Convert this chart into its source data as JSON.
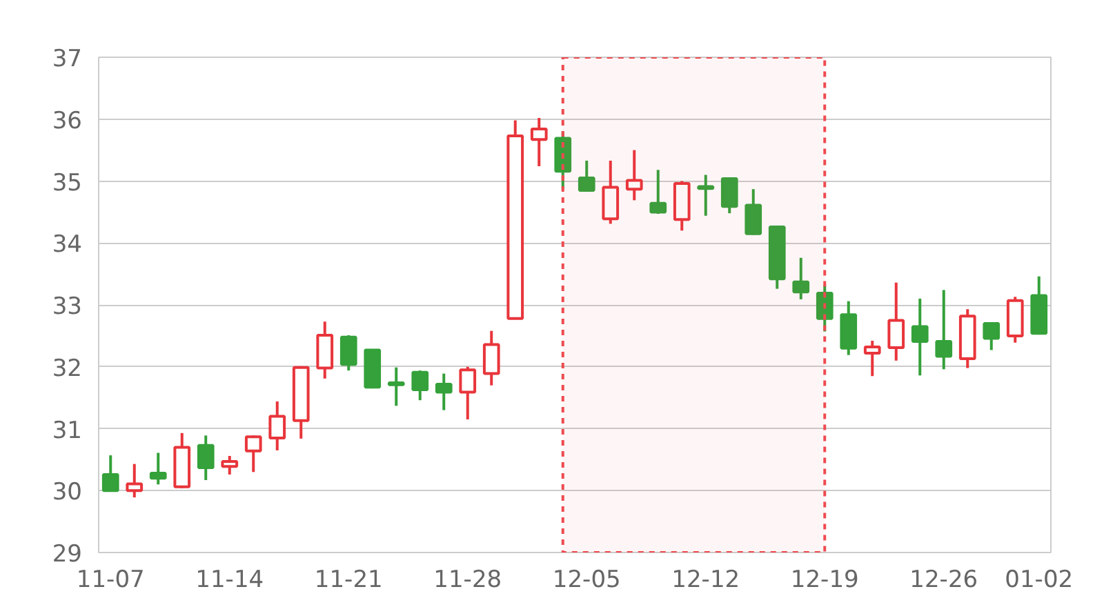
{
  "chart_data": {
    "type": "candlestick",
    "categories": [
      "11-07",
      null,
      null,
      null,
      null,
      "11-14",
      null,
      null,
      null,
      null,
      "11-21",
      null,
      null,
      null,
      null,
      "11-28",
      null,
      null,
      null,
      null,
      "12-05",
      null,
      null,
      null,
      null,
      "12-12",
      null,
      null,
      null,
      null,
      "12-19",
      null,
      null,
      null,
      null,
      "12-26",
      null,
      null,
      null,
      "01-02"
    ],
    "ohlc": [
      [
        30.26,
        30.57,
        30.0,
        30.0
      ],
      [
        30.0,
        30.43,
        29.89,
        30.11
      ],
      [
        30.28,
        30.61,
        30.1,
        30.2
      ],
      [
        30.06,
        30.93,
        30.04,
        30.7
      ],
      [
        30.73,
        30.89,
        30.17,
        30.37
      ],
      [
        30.39,
        30.56,
        30.26,
        30.47
      ],
      [
        30.64,
        30.89,
        30.3,
        30.87
      ],
      [
        30.85,
        31.44,
        30.65,
        31.2
      ],
      [
        31.13,
        32.01,
        30.84,
        31.99
      ],
      [
        31.98,
        32.73,
        31.81,
        32.51
      ],
      [
        32.48,
        32.51,
        31.94,
        32.04
      ],
      [
        32.27,
        32.27,
        31.65,
        31.67
      ],
      [
        31.74,
        31.99,
        31.37,
        31.71
      ],
      [
        31.91,
        31.94,
        31.46,
        31.63
      ],
      [
        31.72,
        31.89,
        31.3,
        31.59
      ],
      [
        31.59,
        32.0,
        31.15,
        31.95
      ],
      [
        31.89,
        32.58,
        31.7,
        32.36
      ],
      [
        32.78,
        35.98,
        32.78,
        35.73
      ],
      [
        35.67,
        36.02,
        35.24,
        35.84
      ],
      [
        35.69,
        35.8,
        34.87,
        35.16
      ],
      [
        35.05,
        35.33,
        34.84,
        34.85
      ],
      [
        34.39,
        35.33,
        34.31,
        34.9
      ],
      [
        34.87,
        35.5,
        34.69,
        35.01
      ],
      [
        34.64,
        35.18,
        34.47,
        34.5
      ],
      [
        34.38,
        35.0,
        34.2,
        34.96
      ],
      [
        34.91,
        35.1,
        34.44,
        34.88
      ],
      [
        35.04,
        35.04,
        34.48,
        34.59
      ],
      [
        34.61,
        34.87,
        34.13,
        34.15
      ],
      [
        34.26,
        34.26,
        33.26,
        33.42
      ],
      [
        33.37,
        33.76,
        33.09,
        33.21
      ],
      [
        33.19,
        33.32,
        32.57,
        32.78
      ],
      [
        32.84,
        33.06,
        32.19,
        32.3
      ],
      [
        32.22,
        32.42,
        31.85,
        32.32
      ],
      [
        32.31,
        33.36,
        32.1,
        32.75
      ],
      [
        32.65,
        33.1,
        31.86,
        32.41
      ],
      [
        32.41,
        33.24,
        31.96,
        32.17
      ],
      [
        32.13,
        32.93,
        31.98,
        32.82
      ],
      [
        32.7,
        32.7,
        32.27,
        32.46
      ],
      [
        32.5,
        33.13,
        32.39,
        33.07
      ],
      [
        33.15,
        33.46,
        32.52,
        32.54
      ]
    ],
    "colors": [
      "#34a13a",
      "#e8353b",
      "#34a13a",
      "#e8353b",
      "#34a13a",
      "#e8353b",
      "#e8353b",
      "#e8353b",
      "#e8353b",
      "#e8353b",
      "#34a13a",
      "#34a13a",
      "#34a13a",
      "#34a13a",
      "#34a13a",
      "#e8353b",
      "#e8353b",
      "#e8353b",
      "#e8353b",
      "#34a13a",
      "#34a13a",
      "#e8353b",
      "#e8353b",
      "#34a13a",
      "#e8353b",
      "#34a13a",
      "#34a13a",
      "#34a13a",
      "#34a13a",
      "#34a13a",
      "#34a13a",
      "#34a13a",
      "#e8353b",
      "#e8353b",
      "#34a13a",
      "#34a13a",
      "#e8353b",
      "#34a13a",
      "#e8353b",
      "#34a13a"
    ],
    "ylim": [
      29,
      37
    ],
    "yticks": [
      29,
      30,
      31,
      32,
      33,
      34,
      35,
      36,
      37
    ],
    "grid": "y"
  }
}
